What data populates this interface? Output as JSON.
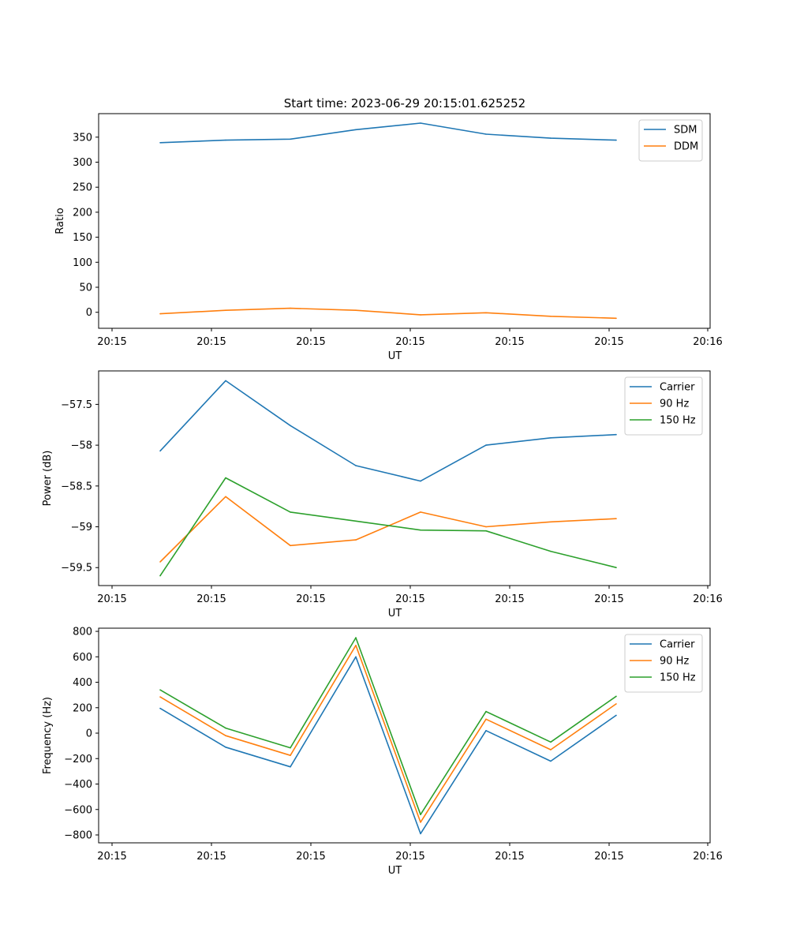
{
  "figure": {
    "title": "Start time: 2023-06-29 20:15:01.625252"
  },
  "colors": {
    "blue": "#1f77b4",
    "orange": "#ff7f0e",
    "green": "#2ca02c"
  },
  "chart_data": [
    {
      "type": "line",
      "title": "Start time: 2023-06-29 20:15:01.625252",
      "xlabel": "UT",
      "ylabel": "Ratio",
      "x": [
        "20:15:01.62",
        "20:15:01.87",
        "20:15:02.12",
        "20:15:02.37",
        "20:15:02.62",
        "20:15:02.87",
        "20:15:03.12",
        "20:15:03.37"
      ],
      "xlim_ticks": [
        "20:15",
        "20:15",
        "20:15",
        "20:15",
        "20:15",
        "20:15",
        "20:16"
      ],
      "ylim": [
        -32,
        397
      ],
      "yticks": [
        0,
        50,
        100,
        150,
        200,
        250,
        300,
        350
      ],
      "legend_position": "top-right",
      "grid": false,
      "series": [
        {
          "name": "SDM",
          "color": "#1f77b4",
          "values": [
            339,
            344,
            346,
            365,
            378,
            356,
            348,
            344
          ]
        },
        {
          "name": "DDM",
          "color": "#ff7f0e",
          "values": [
            -3,
            4,
            8,
            4,
            -5,
            -1,
            -8,
            -12
          ]
        }
      ]
    },
    {
      "type": "line",
      "title": "",
      "xlabel": "UT",
      "ylabel": "Power (dB)",
      "x": [
        "20:15:01.62",
        "20:15:01.87",
        "20:15:02.12",
        "20:15:02.37",
        "20:15:02.62",
        "20:15:02.87",
        "20:15:03.12",
        "20:15:03.37"
      ],
      "xlim_ticks": [
        "20:15",
        "20:15",
        "20:15",
        "20:15",
        "20:15",
        "20:15",
        "20:16"
      ],
      "ylim": [
        -59.72,
        -57.09
      ],
      "yticks": [
        -57.5,
        -58.0,
        -58.5,
        -59.0,
        -59.5
      ],
      "legend_position": "top-right",
      "grid": false,
      "series": [
        {
          "name": "Carrier",
          "color": "#1f77b4",
          "values": [
            -58.07,
            -57.21,
            -57.76,
            -58.25,
            -58.44,
            -58.0,
            -57.91,
            -57.87
          ]
        },
        {
          "name": "90 Hz",
          "color": "#ff7f0e",
          "values": [
            -59.43,
            -58.63,
            -59.23,
            -59.16,
            -58.82,
            -59.0,
            -58.94,
            -58.9
          ]
        },
        {
          "name": "150 Hz",
          "color": "#2ca02c",
          "values": [
            -59.6,
            -58.4,
            -58.82,
            -58.93,
            -59.04,
            -59.05,
            -59.3,
            -59.5
          ]
        }
      ]
    },
    {
      "type": "line",
      "title": "",
      "xlabel": "UT",
      "ylabel": "Frequency (Hz)",
      "x": [
        "20:15:01.62",
        "20:15:01.87",
        "20:15:02.12",
        "20:15:02.37",
        "20:15:02.62",
        "20:15:02.87",
        "20:15:03.12",
        "20:15:03.37"
      ],
      "xlim_ticks": [
        "20:15",
        "20:15",
        "20:15",
        "20:15",
        "20:15",
        "20:15",
        "20:16"
      ],
      "ylim": [
        -862,
        825
      ],
      "yticks": [
        800,
        600,
        400,
        200,
        0,
        -200,
        -400,
        -600,
        -800
      ],
      "legend_position": "top-right",
      "grid": false,
      "series": [
        {
          "name": "Carrier",
          "color": "#1f77b4",
          "values": [
            195,
            -110,
            -265,
            600,
            -790,
            20,
            -220,
            140
          ]
        },
        {
          "name": "90 Hz",
          "color": "#ff7f0e",
          "values": [
            285,
            -20,
            -175,
            690,
            -700,
            110,
            -130,
            230
          ]
        },
        {
          "name": "150 Hz",
          "color": "#2ca02c",
          "values": [
            340,
            40,
            -115,
            750,
            -640,
            170,
            -70,
            290
          ]
        }
      ]
    }
  ]
}
